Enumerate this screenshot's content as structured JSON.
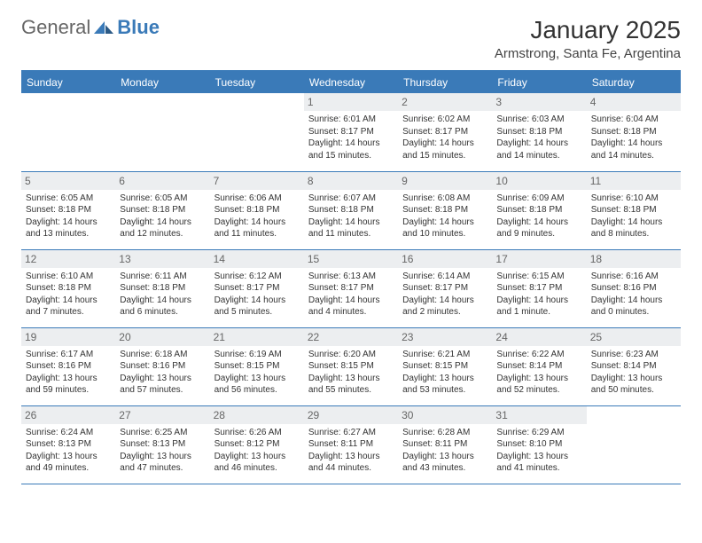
{
  "brand": {
    "part1": "General",
    "part2": "Blue"
  },
  "title": "January 2025",
  "location": "Armstrong, Santa Fe, Argentina",
  "colors": {
    "header_bg": "#3a7ab8",
    "header_text": "#ffffff",
    "daynum_bg": "#eceef0",
    "daynum_text": "#666666",
    "rule": "#3a7ab8",
    "body_text": "#333333"
  },
  "day_headers": [
    "Sunday",
    "Monday",
    "Tuesday",
    "Wednesday",
    "Thursday",
    "Friday",
    "Saturday"
  ],
  "weeks": [
    [
      {
        "n": "",
        "sr": "",
        "ss": "",
        "dl1": "",
        "dl2": ""
      },
      {
        "n": "",
        "sr": "",
        "ss": "",
        "dl1": "",
        "dl2": ""
      },
      {
        "n": "",
        "sr": "",
        "ss": "",
        "dl1": "",
        "dl2": ""
      },
      {
        "n": "1",
        "sr": "Sunrise: 6:01 AM",
        "ss": "Sunset: 8:17 PM",
        "dl1": "Daylight: 14 hours",
        "dl2": "and 15 minutes."
      },
      {
        "n": "2",
        "sr": "Sunrise: 6:02 AM",
        "ss": "Sunset: 8:17 PM",
        "dl1": "Daylight: 14 hours",
        "dl2": "and 15 minutes."
      },
      {
        "n": "3",
        "sr": "Sunrise: 6:03 AM",
        "ss": "Sunset: 8:18 PM",
        "dl1": "Daylight: 14 hours",
        "dl2": "and 14 minutes."
      },
      {
        "n": "4",
        "sr": "Sunrise: 6:04 AM",
        "ss": "Sunset: 8:18 PM",
        "dl1": "Daylight: 14 hours",
        "dl2": "and 14 minutes."
      }
    ],
    [
      {
        "n": "5",
        "sr": "Sunrise: 6:05 AM",
        "ss": "Sunset: 8:18 PM",
        "dl1": "Daylight: 14 hours",
        "dl2": "and 13 minutes."
      },
      {
        "n": "6",
        "sr": "Sunrise: 6:05 AM",
        "ss": "Sunset: 8:18 PM",
        "dl1": "Daylight: 14 hours",
        "dl2": "and 12 minutes."
      },
      {
        "n": "7",
        "sr": "Sunrise: 6:06 AM",
        "ss": "Sunset: 8:18 PM",
        "dl1": "Daylight: 14 hours",
        "dl2": "and 11 minutes."
      },
      {
        "n": "8",
        "sr": "Sunrise: 6:07 AM",
        "ss": "Sunset: 8:18 PM",
        "dl1": "Daylight: 14 hours",
        "dl2": "and 11 minutes."
      },
      {
        "n": "9",
        "sr": "Sunrise: 6:08 AM",
        "ss": "Sunset: 8:18 PM",
        "dl1": "Daylight: 14 hours",
        "dl2": "and 10 minutes."
      },
      {
        "n": "10",
        "sr": "Sunrise: 6:09 AM",
        "ss": "Sunset: 8:18 PM",
        "dl1": "Daylight: 14 hours",
        "dl2": "and 9 minutes."
      },
      {
        "n": "11",
        "sr": "Sunrise: 6:10 AM",
        "ss": "Sunset: 8:18 PM",
        "dl1": "Daylight: 14 hours",
        "dl2": "and 8 minutes."
      }
    ],
    [
      {
        "n": "12",
        "sr": "Sunrise: 6:10 AM",
        "ss": "Sunset: 8:18 PM",
        "dl1": "Daylight: 14 hours",
        "dl2": "and 7 minutes."
      },
      {
        "n": "13",
        "sr": "Sunrise: 6:11 AM",
        "ss": "Sunset: 8:18 PM",
        "dl1": "Daylight: 14 hours",
        "dl2": "and 6 minutes."
      },
      {
        "n": "14",
        "sr": "Sunrise: 6:12 AM",
        "ss": "Sunset: 8:17 PM",
        "dl1": "Daylight: 14 hours",
        "dl2": "and 5 minutes."
      },
      {
        "n": "15",
        "sr": "Sunrise: 6:13 AM",
        "ss": "Sunset: 8:17 PM",
        "dl1": "Daylight: 14 hours",
        "dl2": "and 4 minutes."
      },
      {
        "n": "16",
        "sr": "Sunrise: 6:14 AM",
        "ss": "Sunset: 8:17 PM",
        "dl1": "Daylight: 14 hours",
        "dl2": "and 2 minutes."
      },
      {
        "n": "17",
        "sr": "Sunrise: 6:15 AM",
        "ss": "Sunset: 8:17 PM",
        "dl1": "Daylight: 14 hours",
        "dl2": "and 1 minute."
      },
      {
        "n": "18",
        "sr": "Sunrise: 6:16 AM",
        "ss": "Sunset: 8:16 PM",
        "dl1": "Daylight: 14 hours",
        "dl2": "and 0 minutes."
      }
    ],
    [
      {
        "n": "19",
        "sr": "Sunrise: 6:17 AM",
        "ss": "Sunset: 8:16 PM",
        "dl1": "Daylight: 13 hours",
        "dl2": "and 59 minutes."
      },
      {
        "n": "20",
        "sr": "Sunrise: 6:18 AM",
        "ss": "Sunset: 8:16 PM",
        "dl1": "Daylight: 13 hours",
        "dl2": "and 57 minutes."
      },
      {
        "n": "21",
        "sr": "Sunrise: 6:19 AM",
        "ss": "Sunset: 8:15 PM",
        "dl1": "Daylight: 13 hours",
        "dl2": "and 56 minutes."
      },
      {
        "n": "22",
        "sr": "Sunrise: 6:20 AM",
        "ss": "Sunset: 8:15 PM",
        "dl1": "Daylight: 13 hours",
        "dl2": "and 55 minutes."
      },
      {
        "n": "23",
        "sr": "Sunrise: 6:21 AM",
        "ss": "Sunset: 8:15 PM",
        "dl1": "Daylight: 13 hours",
        "dl2": "and 53 minutes."
      },
      {
        "n": "24",
        "sr": "Sunrise: 6:22 AM",
        "ss": "Sunset: 8:14 PM",
        "dl1": "Daylight: 13 hours",
        "dl2": "and 52 minutes."
      },
      {
        "n": "25",
        "sr": "Sunrise: 6:23 AM",
        "ss": "Sunset: 8:14 PM",
        "dl1": "Daylight: 13 hours",
        "dl2": "and 50 minutes."
      }
    ],
    [
      {
        "n": "26",
        "sr": "Sunrise: 6:24 AM",
        "ss": "Sunset: 8:13 PM",
        "dl1": "Daylight: 13 hours",
        "dl2": "and 49 minutes."
      },
      {
        "n": "27",
        "sr": "Sunrise: 6:25 AM",
        "ss": "Sunset: 8:13 PM",
        "dl1": "Daylight: 13 hours",
        "dl2": "and 47 minutes."
      },
      {
        "n": "28",
        "sr": "Sunrise: 6:26 AM",
        "ss": "Sunset: 8:12 PM",
        "dl1": "Daylight: 13 hours",
        "dl2": "and 46 minutes."
      },
      {
        "n": "29",
        "sr": "Sunrise: 6:27 AM",
        "ss": "Sunset: 8:11 PM",
        "dl1": "Daylight: 13 hours",
        "dl2": "and 44 minutes."
      },
      {
        "n": "30",
        "sr": "Sunrise: 6:28 AM",
        "ss": "Sunset: 8:11 PM",
        "dl1": "Daylight: 13 hours",
        "dl2": "and 43 minutes."
      },
      {
        "n": "31",
        "sr": "Sunrise: 6:29 AM",
        "ss": "Sunset: 8:10 PM",
        "dl1": "Daylight: 13 hours",
        "dl2": "and 41 minutes."
      },
      {
        "n": "",
        "sr": "",
        "ss": "",
        "dl1": "",
        "dl2": ""
      }
    ]
  ]
}
